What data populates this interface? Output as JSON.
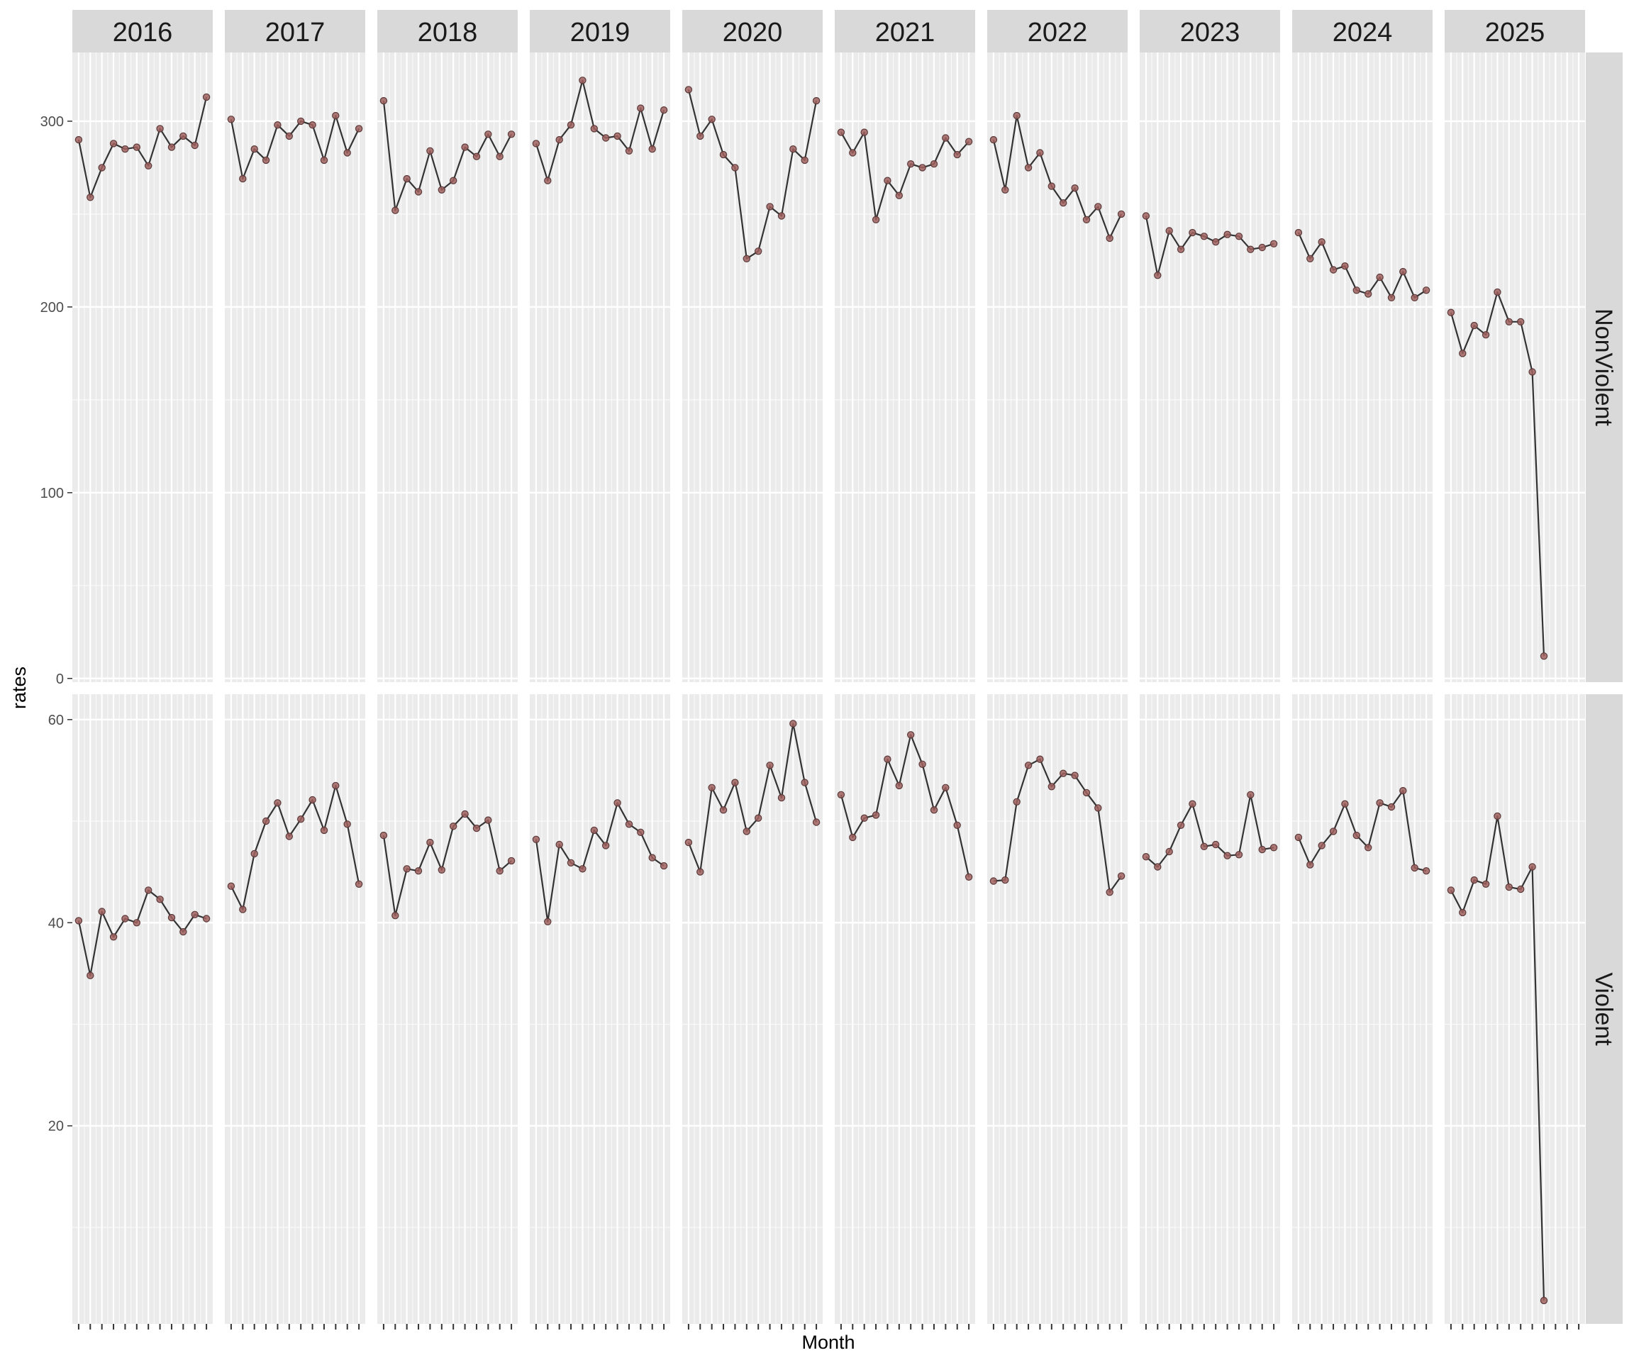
{
  "chart_data": {
    "type": "line",
    "xlabel": "Month",
    "ylabel": "rates",
    "facet_columns": [
      "2016",
      "2017",
      "2018",
      "2019",
      "2020",
      "2021",
      "2022",
      "2023",
      "2024",
      "2025"
    ],
    "facet_rows": [
      "NonViolent",
      "Violent"
    ],
    "months_per_panel": 12,
    "panels": [
      {
        "name": "NonViolent",
        "ylim": [
          -2,
          337
        ],
        "y_ticks": [
          0,
          100,
          200,
          300
        ],
        "series": {
          "2016": [
            290,
            259,
            275,
            288,
            285,
            286,
            276,
            296,
            286,
            292,
            287,
            313
          ],
          "2017": [
            301,
            269,
            285,
            279,
            298,
            292,
            300,
            298,
            279,
            303,
            283,
            296
          ],
          "2018": [
            311,
            252,
            269,
            262,
            284,
            263,
            268,
            286,
            281,
            293,
            281,
            293
          ],
          "2019": [
            288,
            268,
            290,
            298,
            322,
            296,
            291,
            292,
            284,
            307,
            285,
            306
          ],
          "2020": [
            317,
            292,
            301,
            282,
            275,
            226,
            230,
            254,
            249,
            285,
            279,
            311
          ],
          "2021": [
            294,
            283,
            294,
            247,
            268,
            260,
            277,
            275,
            277,
            291,
            282,
            289
          ],
          "2022": [
            290,
            263,
            303,
            275,
            283,
            265,
            256,
            264,
            247,
            254,
            237,
            250
          ],
          "2023": [
            249,
            217,
            241,
            231,
            240,
            238,
            235,
            239,
            238,
            231,
            232,
            234
          ],
          "2024": [
            240,
            226,
            235,
            220,
            222,
            209,
            207,
            216,
            205,
            219,
            205,
            209
          ],
          "2025": [
            197,
            175,
            190,
            185,
            208,
            192,
            192,
            165,
            12
          ]
        }
      },
      {
        "name": "Violent",
        "ylim": [
          0.5,
          62.5
        ],
        "y_ticks": [
          20,
          40,
          60
        ],
        "series": {
          "2016": [
            40.2,
            34.8,
            41.1,
            38.6,
            40.4,
            40.0,
            43.2,
            42.3,
            40.5,
            39.1,
            40.8,
            40.4
          ],
          "2017": [
            43.6,
            41.3,
            46.8,
            50.0,
            51.8,
            48.5,
            50.2,
            52.1,
            49.1,
            53.5,
            49.7,
            43.8
          ],
          "2018": [
            48.6,
            40.7,
            45.3,
            45.1,
            47.9,
            45.2,
            49.5,
            50.7,
            49.3,
            50.1,
            45.1,
            46.1
          ],
          "2019": [
            48.2,
            40.1,
            47.7,
            45.9,
            45.3,
            49.1,
            47.6,
            51.8,
            49.7,
            48.9,
            46.4,
            45.6
          ],
          "2020": [
            47.9,
            45.0,
            53.3,
            51.1,
            53.8,
            49.0,
            50.3,
            55.5,
            52.3,
            59.6,
            53.8,
            49.9
          ],
          "2021": [
            52.6,
            48.4,
            50.3,
            50.6,
            56.1,
            53.5,
            58.5,
            55.6,
            51.1,
            53.3,
            49.6,
            44.5
          ],
          "2022": [
            44.1,
            44.2,
            51.9,
            55.5,
            56.1,
            53.4,
            54.7,
            54.5,
            52.8,
            51.3,
            43.0,
            44.6
          ],
          "2023": [
            46.5,
            45.5,
            47.0,
            49.6,
            51.7,
            47.5,
            47.7,
            46.6,
            46.7,
            52.6,
            47.2,
            47.4
          ],
          "2024": [
            48.4,
            45.7,
            47.6,
            49.0,
            51.7,
            48.6,
            47.4,
            51.8,
            51.4,
            53.0,
            45.4,
            45.1
          ],
          "2025": [
            43.2,
            41.0,
            44.2,
            43.8,
            50.5,
            43.5,
            43.3,
            45.5,
            2.8
          ]
        }
      }
    ],
    "grid": true,
    "legend": "none",
    "colors": {
      "panel_background": "#ebebeb",
      "grid_major": "#ffffff",
      "strip_background": "#d9d9d9",
      "line": "#333333",
      "point_fill": "#a0605e",
      "point_stroke": "#5a3a3a",
      "axis_text": "#4d4d4d"
    }
  }
}
